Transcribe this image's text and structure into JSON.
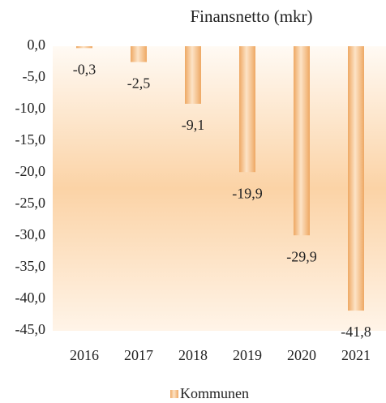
{
  "chart_data": {
    "type": "bar",
    "title": "Finansnetto (mkr)",
    "categories": [
      "2016",
      "2017",
      "2018",
      "2019",
      "2020",
      "2021"
    ],
    "series": [
      {
        "name": "Kommunen",
        "color": "#f4b57a",
        "values": [
          -0.3,
          -2.5,
          -9.1,
          -19.9,
          -29.9,
          -41.8
        ],
        "value_labels": [
          "-0,3",
          "-2,5",
          "-9,1",
          "-19,9",
          "-29,9",
          "-41,8"
        ]
      }
    ],
    "ylim": [
      -45,
      0
    ],
    "yticks": [
      {
        "value": 0,
        "label": "0,0"
      },
      {
        "value": -5,
        "label": "-5,0"
      },
      {
        "value": -10,
        "label": "-10,0"
      },
      {
        "value": -15,
        "label": "-15,0"
      },
      {
        "value": -20,
        "label": "-20,0"
      },
      {
        "value": -25,
        "label": "-25,0"
      },
      {
        "value": -30,
        "label": "-30,0"
      },
      {
        "value": -35,
        "label": "-35,0"
      },
      {
        "value": -40,
        "label": "-40,0"
      },
      {
        "value": -45,
        "label": "-45,0"
      }
    ],
    "legend": "bottom"
  }
}
